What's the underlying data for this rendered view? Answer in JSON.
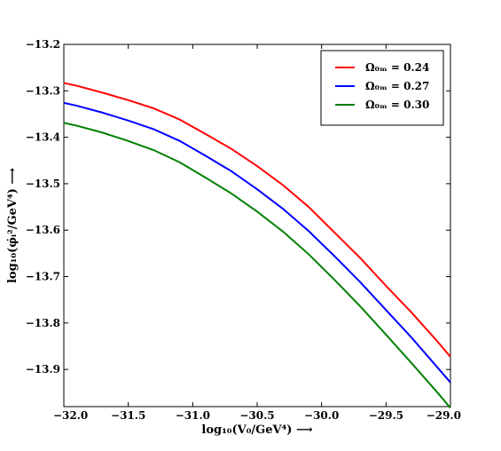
{
  "chart_data": {
    "type": "line",
    "title": "",
    "xlabel": "log₁₀(V₀/GeV⁴) ⟶",
    "ylabel": "log₁₀(φ̇ᵢ²/GeV⁴) ⟶",
    "xlim": [
      -32.0,
      -29.0
    ],
    "ylim": [
      -13.98,
      -13.2
    ],
    "xticks": [
      -32.0,
      -31.5,
      -31.0,
      -30.5,
      -30.0,
      -29.5,
      -29.0
    ],
    "xtick_labels": [
      "−32.0",
      "−31.5",
      "−31.0",
      "−30.5",
      "−30.0",
      "−29.5",
      "−29.0"
    ],
    "yticks": [
      -13.2,
      -13.3,
      -13.4,
      -13.5,
      -13.6,
      -13.7,
      -13.8,
      -13.9
    ],
    "ytick_labels": [
      "−13.2",
      "−13.3",
      "−13.4",
      "−13.5",
      "−13.6",
      "−13.7",
      "−13.8",
      "−13.9"
    ],
    "grid": false,
    "legend_position": "top-right",
    "series": [
      {
        "name": "Ω₀ₘ = 0.24",
        "color": "#ff0000",
        "x": [
          -32.0,
          -31.9,
          -31.7,
          -31.5,
          -31.3,
          -31.1,
          -30.9,
          -30.7,
          -30.5,
          -30.3,
          -30.1,
          -29.9,
          -29.7,
          -29.5,
          -29.3,
          -29.1,
          -29.0
        ],
        "y": [
          -13.283,
          -13.289,
          -13.304,
          -13.32,
          -13.338,
          -13.362,
          -13.393,
          -13.425,
          -13.462,
          -13.503,
          -13.55,
          -13.605,
          -13.66,
          -13.72,
          -13.778,
          -13.84,
          -13.873
        ]
      },
      {
        "name": "Ω₀ₘ = 0.27",
        "color": "#0000ff",
        "x": [
          -32.0,
          -31.9,
          -31.7,
          -31.5,
          -31.3,
          -31.1,
          -30.9,
          -30.7,
          -30.5,
          -30.3,
          -30.1,
          -29.9,
          -29.7,
          -29.5,
          -29.3,
          -29.1,
          -29.0
        ],
        "y": [
          -13.326,
          -13.332,
          -13.347,
          -13.364,
          -13.383,
          -13.408,
          -13.44,
          -13.473,
          -13.512,
          -13.554,
          -13.602,
          -13.656,
          -13.712,
          -13.772,
          -13.832,
          -13.896,
          -13.928
        ]
      },
      {
        "name": "Ω₀ₘ = 0.30",
        "color": "#008000",
        "x": [
          -32.0,
          -31.9,
          -31.7,
          -31.5,
          -31.3,
          -31.1,
          -30.9,
          -30.7,
          -30.5,
          -30.3,
          -30.1,
          -29.9,
          -29.7,
          -29.5,
          -29.3,
          -29.1,
          -29.0
        ],
        "y": [
          -13.369,
          -13.375,
          -13.39,
          -13.408,
          -13.428,
          -13.454,
          -13.487,
          -13.521,
          -13.56,
          -13.603,
          -13.652,
          -13.707,
          -13.764,
          -13.825,
          -13.887,
          -13.95,
          -13.983
        ]
      }
    ]
  }
}
